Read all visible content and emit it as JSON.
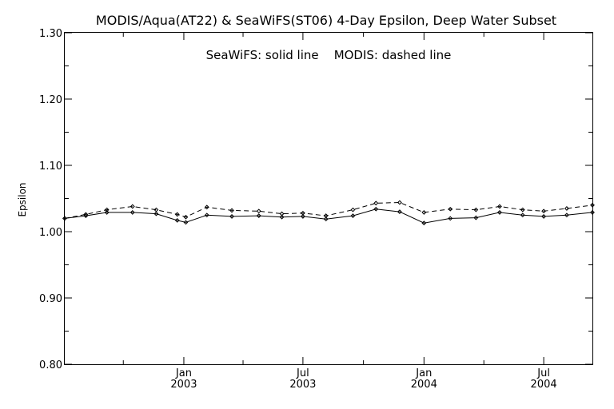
{
  "chart_data": {
    "type": "line",
    "title": "MODIS/Aqua(AT22) & SeaWiFS(ST06) 4-Day Epsilon, Deep Water Subset",
    "annotation": "SeaWiFS: solid line    MODIS: dashed line",
    "xlabel": "",
    "ylabel": "Epsilon",
    "ylim": [
      0.8,
      1.3
    ],
    "yticks": [
      "0.80",
      "0.90",
      "1.00",
      "1.10",
      "1.20",
      "1.30"
    ],
    "xrange": [
      "2002-07-04",
      "2004-09-13"
    ],
    "xticks": [
      {
        "date": "2003-01-01",
        "month": "Jan",
        "year": "2003"
      },
      {
        "date": "2003-07-01",
        "month": "Jul",
        "year": "2003"
      },
      {
        "date": "2004-01-01",
        "month": "Jan",
        "year": "2004"
      },
      {
        "date": "2004-07-01",
        "month": "Jul",
        "year": "2004"
      }
    ],
    "grid": false,
    "legend": "none",
    "series": [
      {
        "name": "SeaWiFS",
        "style": "solid",
        "x": [
          "2002-07-04",
          "2002-08-05",
          "2002-09-06",
          "2002-10-15",
          "2002-11-20",
          "2002-12-22",
          "2003-01-04",
          "2003-02-05",
          "2003-03-15",
          "2003-04-25",
          "2003-05-30",
          "2003-07-01",
          "2003-08-05",
          "2003-09-15",
          "2003-10-20",
          "2003-11-25",
          "2004-01-01",
          "2004-02-10",
          "2004-03-20",
          "2004-04-25",
          "2004-05-30",
          "2004-07-01",
          "2004-08-05",
          "2004-09-13"
        ],
        "values": [
          1.02,
          1.024,
          1.029,
          1.029,
          1.027,
          1.017,
          1.014,
          1.025,
          1.023,
          1.024,
          1.022,
          1.023,
          1.019,
          1.024,
          1.034,
          1.03,
          1.013,
          1.02,
          1.021,
          1.029,
          1.025,
          1.023,
          1.025,
          1.029
        ]
      },
      {
        "name": "MODIS",
        "style": "dashed",
        "x": [
          "2002-07-04",
          "2002-08-05",
          "2002-09-06",
          "2002-10-15",
          "2002-11-20",
          "2002-12-22",
          "2003-01-04",
          "2003-02-05",
          "2003-03-15",
          "2003-04-25",
          "2003-05-30",
          "2003-07-01",
          "2003-08-05",
          "2003-09-15",
          "2003-10-20",
          "2003-11-25",
          "2004-01-01",
          "2004-02-10",
          "2004-03-20",
          "2004-04-25",
          "2004-05-30",
          "2004-07-01",
          "2004-08-05",
          "2004-09-13"
        ],
        "values": [
          1.02,
          1.026,
          1.033,
          1.038,
          1.033,
          1.026,
          1.022,
          1.037,
          1.032,
          1.031,
          1.027,
          1.028,
          1.024,
          1.033,
          1.043,
          1.044,
          1.029,
          1.034,
          1.033,
          1.038,
          1.033,
          1.031,
          1.035,
          1.04
        ]
      }
    ]
  }
}
